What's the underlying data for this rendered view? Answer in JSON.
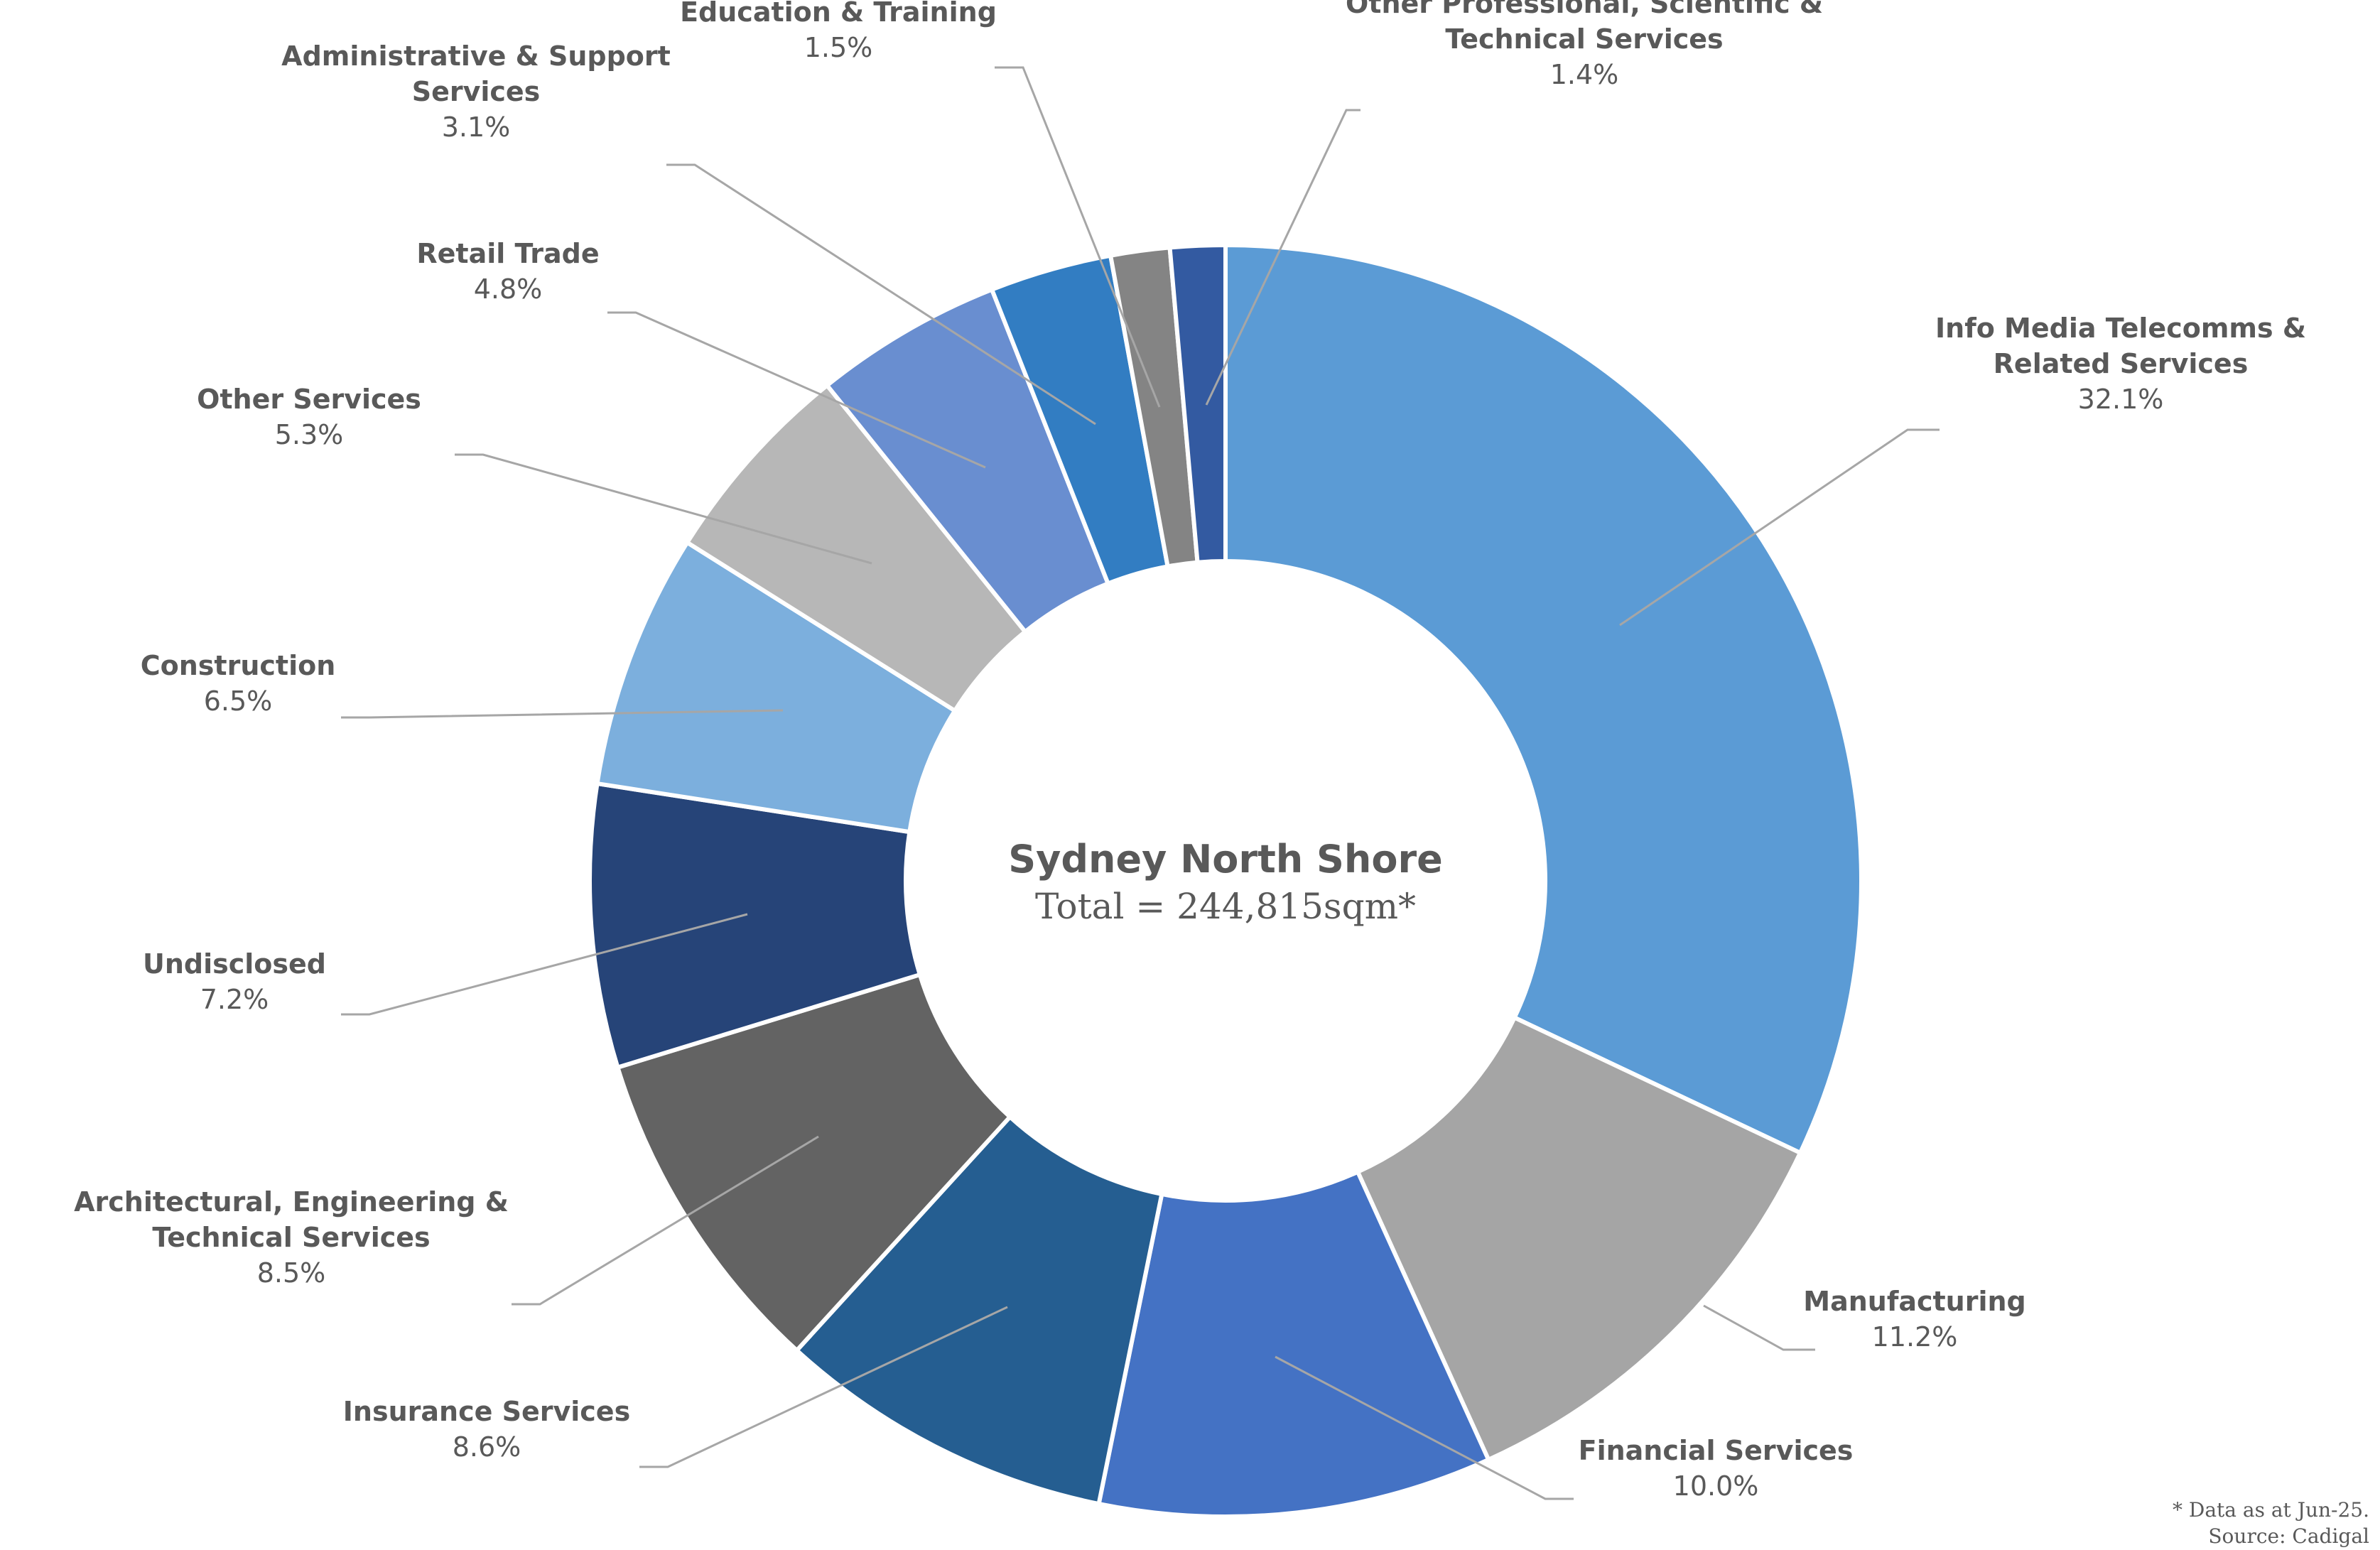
{
  "chart_data": {
    "type": "pie",
    "variant": "donut",
    "title": "Sydney North Shore",
    "subtitle": "Total = 244,815sqm*",
    "note_lines": [
      "* Data as at Jun-25.",
      "Source: Cadigal"
    ],
    "slices": [
      {
        "name_lines": [
          "Info Media Telecomms &",
          "Related Services"
        ],
        "value": 32.1,
        "label": "32.1%",
        "color": "#5B9BD5"
      },
      {
        "name_lines": [
          "Manufacturing"
        ],
        "value": 11.2,
        "label": "11.2%",
        "color": "#A5A5A5"
      },
      {
        "name_lines": [
          "Financial Services"
        ],
        "value": 10.0,
        "label": "10.0%",
        "color": "#4472C4"
      },
      {
        "name_lines": [
          "Insurance Services"
        ],
        "value": 8.6,
        "label": "8.6%",
        "color": "#255E91"
      },
      {
        "name_lines": [
          "Architectural, Engineering &",
          "Technical Services"
        ],
        "value": 8.5,
        "label": "8.5%",
        "color": "#636363"
      },
      {
        "name_lines": [
          "Undisclosed"
        ],
        "value": 7.2,
        "label": "7.2%",
        "color": "#264478"
      },
      {
        "name_lines": [
          "Construction"
        ],
        "value": 6.5,
        "label": "6.5%",
        "color": "#7CAFDD"
      },
      {
        "name_lines": [
          "Other Services"
        ],
        "value": 5.3,
        "label": "5.3%",
        "color": "#B7B7B7"
      },
      {
        "name_lines": [
          "Retail Trade"
        ],
        "value": 4.8,
        "label": "4.8%",
        "color": "#698ED0"
      },
      {
        "name_lines": [
          "Administrative & Support",
          "Services"
        ],
        "value": 3.1,
        "label": "3.1%",
        "color": "#327DC2"
      },
      {
        "name_lines": [
          "Education & Training"
        ],
        "value": 1.5,
        "label": "1.5%",
        "color": "#848484"
      },
      {
        "name_lines": [
          "Other Professional, Scientific &",
          "Technical Services"
        ],
        "value": 1.4,
        "label": "1.4%",
        "color": "#335AA1"
      }
    ]
  }
}
